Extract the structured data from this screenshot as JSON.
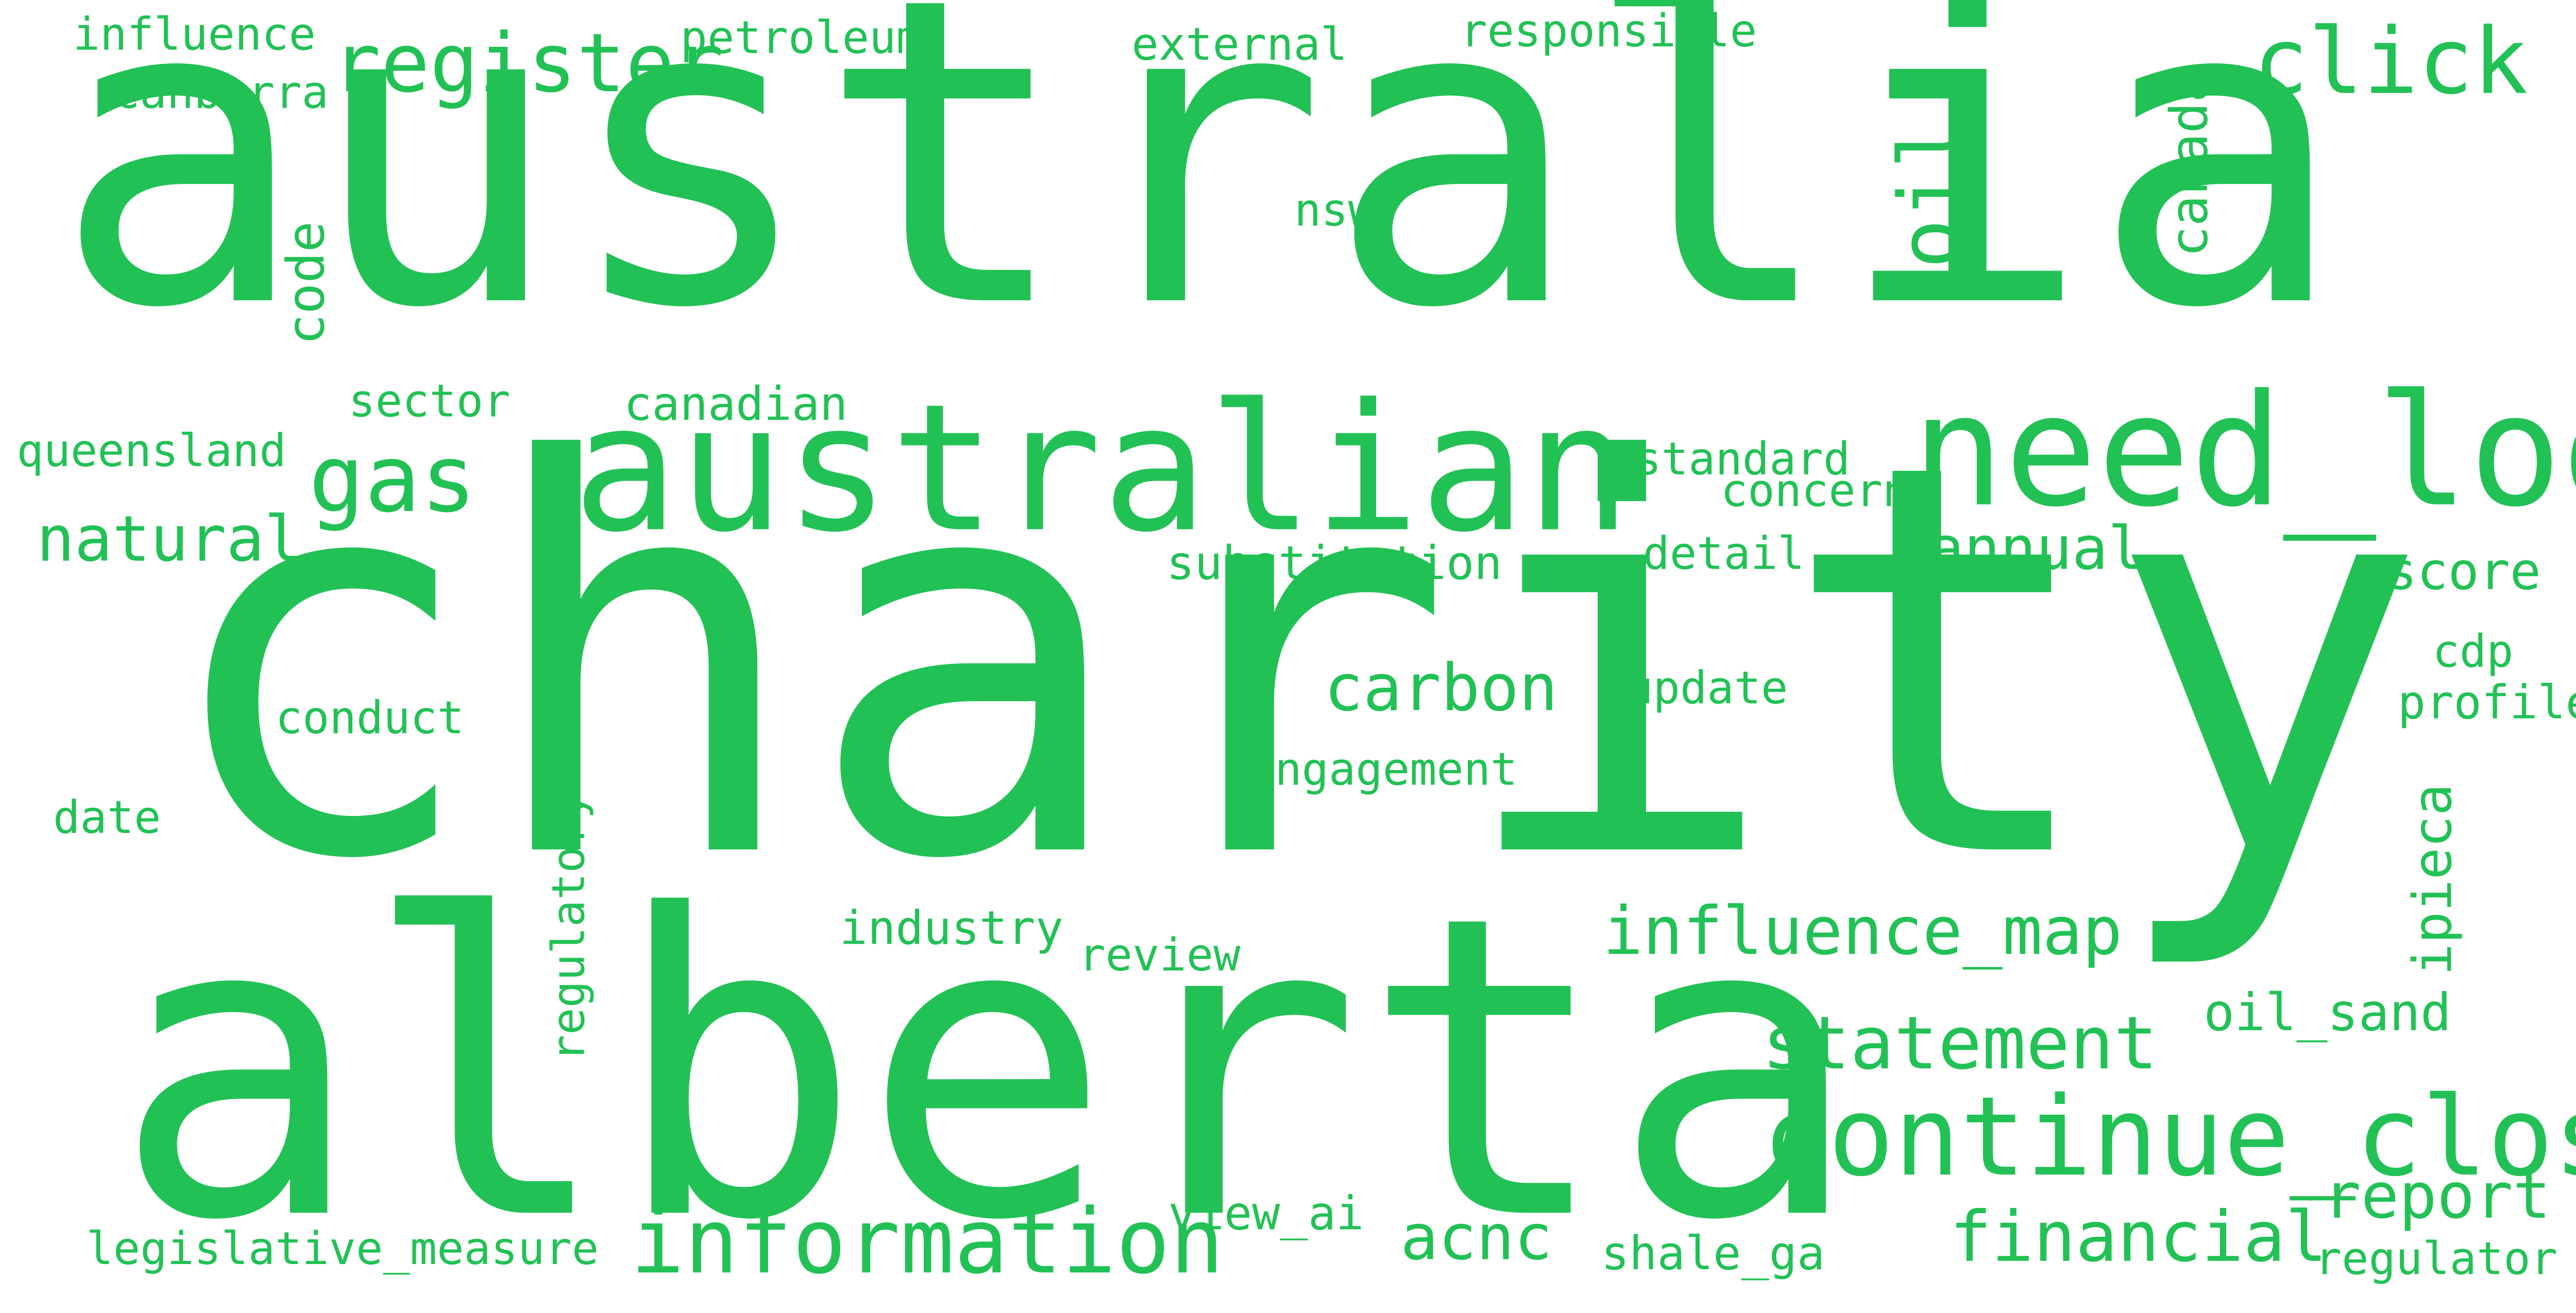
{
  "color": "#22c155",
  "words": [
    {
      "id": "australia",
      "text": "australia"
    },
    {
      "id": "charity",
      "text": "charity"
    },
    {
      "id": "alberta",
      "text": "alberta"
    },
    {
      "id": "australian",
      "text": "australian"
    },
    {
      "id": "need_log",
      "text": "need_log"
    },
    {
      "id": "continue_close",
      "text": "continue_close"
    },
    {
      "id": "information",
      "text": "information"
    },
    {
      "id": "register",
      "text": "register"
    },
    {
      "id": "click",
      "text": "click"
    },
    {
      "id": "gas",
      "text": "gas"
    },
    {
      "id": "oil",
      "text": "oil"
    },
    {
      "id": "statement",
      "text": "statement"
    },
    {
      "id": "influence_map",
      "text": "influence_map"
    },
    {
      "id": "financial",
      "text": "financial"
    },
    {
      "id": "carbon",
      "text": "carbon"
    },
    {
      "id": "report",
      "text": "report"
    },
    {
      "id": "annual",
      "text": "annual"
    },
    {
      "id": "natural",
      "text": "natural"
    },
    {
      "id": "acnc",
      "text": "acnc"
    },
    {
      "id": "canada",
      "text": "canada"
    },
    {
      "id": "code",
      "text": "code"
    },
    {
      "id": "ipieca",
      "text": "ipieca"
    },
    {
      "id": "oil_sand",
      "text": "oil_sand"
    },
    {
      "id": "score",
      "text": "score"
    },
    {
      "id": "canadian",
      "text": "canadian"
    },
    {
      "id": "engagement",
      "text": "engagement"
    },
    {
      "id": "substitution",
      "text": "substitution"
    },
    {
      "id": "industry",
      "text": "industry"
    },
    {
      "id": "profile",
      "text": "profile"
    },
    {
      "id": "legislative_measure",
      "text": "legislative_measure"
    },
    {
      "id": "shale_ga",
      "text": "shale_ga"
    },
    {
      "id": "regulator",
      "text": "regulator"
    },
    {
      "id": "view_ai",
      "text": "view_ai"
    },
    {
      "id": "regulatory",
      "text": "regulatory"
    },
    {
      "id": "external",
      "text": "external"
    },
    {
      "id": "petroleum",
      "text": "petroleum"
    },
    {
      "id": "responsible",
      "text": "responsible"
    },
    {
      "id": "influence",
      "text": "influence"
    },
    {
      "id": "canberra",
      "text": "canberra"
    },
    {
      "id": "queensland",
      "text": "queensland"
    },
    {
      "id": "sector",
      "text": "sector"
    },
    {
      "id": "standard",
      "text": "standard"
    },
    {
      "id": "concern",
      "text": "concern"
    },
    {
      "id": "detail",
      "text": "detail"
    },
    {
      "id": "conduct",
      "text": "conduct"
    },
    {
      "id": "update",
      "text": "update"
    },
    {
      "id": "date",
      "text": "date"
    },
    {
      "id": "review",
      "text": "review"
    },
    {
      "id": "nsw",
      "text": "nsw"
    },
    {
      "id": "cdp",
      "text": "cdp"
    }
  ]
}
